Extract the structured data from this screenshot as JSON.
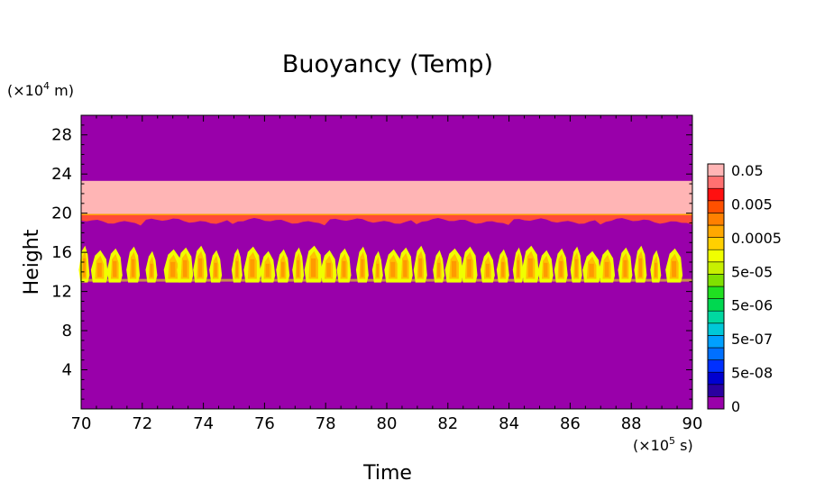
{
  "chart_data": {
    "type": "heatmap",
    "title": "Buoyancy (Temp)",
    "xlabel": "Time",
    "ylabel": "Height",
    "x_unit": "(×10",
    "x_unit_exp": "5",
    "x_unit_tail": " s)",
    "y_unit": "(×10",
    "y_unit_exp": "4",
    "y_unit_tail": " m)",
    "xlim": [
      70,
      90
    ],
    "ylim": [
      0,
      30
    ],
    "x_ticks": [
      70,
      72,
      74,
      76,
      78,
      80,
      82,
      84,
      86,
      88,
      90
    ],
    "x_tick_labels": [
      "70",
      "72",
      "74",
      "76",
      "78",
      "80",
      "82",
      "84",
      "86",
      "88",
      "90"
    ],
    "y_ticks": [
      4,
      8,
      12,
      16,
      20,
      24,
      28
    ],
    "y_tick_labels": [
      "4",
      "8",
      "12",
      "16",
      "20",
      "24",
      "28"
    ],
    "background_color": "#9900aa",
    "layers": [
      {
        "name": "upper band",
        "y_range": [
          19.9,
          23.3
        ],
        "color": "#ffb5b5"
      },
      {
        "name": "lower edge",
        "y_range": [
          19.2,
          19.9
        ],
        "color": "#ff4a3a"
      }
    ],
    "cells": {
      "y_range": [
        13.1,
        16.4
      ],
      "starts_near": [
        70.1,
        70.6,
        71.1,
        71.7,
        72.3,
        73.0,
        73.4,
        73.9,
        74.4,
        75.1,
        75.6,
        76.1,
        76.6,
        77.1,
        77.6,
        78.1,
        78.6,
        79.2,
        79.7,
        80.2,
        80.6,
        81.1,
        81.7,
        82.2,
        82.7,
        83.3,
        83.8,
        84.3,
        84.7,
        85.2,
        85.7,
        86.2,
        86.7,
        87.2,
        87.8,
        88.3,
        88.8,
        89.4
      ],
      "colors": [
        "#f0ff00",
        "#ffc000",
        "#ff9a00"
      ]
    },
    "colorbar": {
      "colors": [
        "#9900aa",
        "#2a00a0",
        "#0000d0",
        "#0030ff",
        "#0070ff",
        "#00a0ff",
        "#00c8d8",
        "#00d8a0",
        "#00d850",
        "#20e020",
        "#80e000",
        "#c8f000",
        "#f0ff00",
        "#ffd000",
        "#ffa800",
        "#ff8000",
        "#ff5000",
        "#ff1010",
        "#ff7070",
        "#ffb5b5"
      ],
      "labels": [
        "0",
        "5e-08",
        "5e-07",
        "5e-06",
        "5e-05",
        "0.0005",
        "0.005",
        "0.05"
      ]
    }
  }
}
